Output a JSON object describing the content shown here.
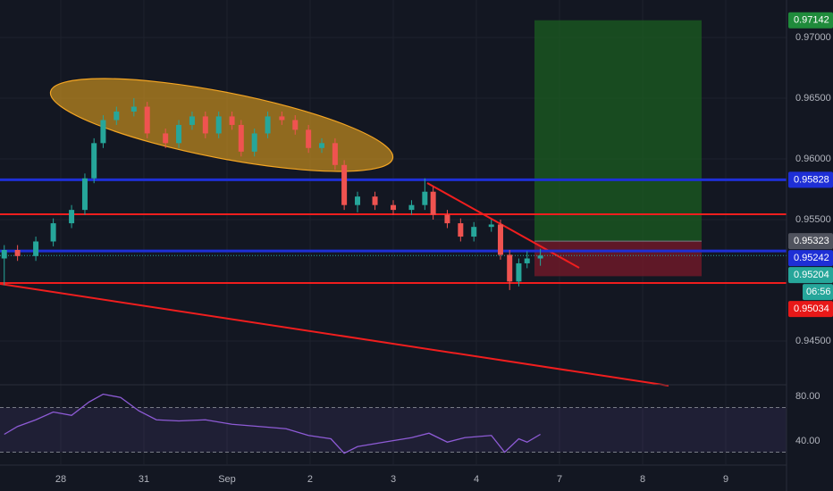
{
  "chart_data": {
    "type": "candlestick",
    "x": [
      -0.68,
      -0.52,
      -0.3,
      -0.09,
      0.13,
      0.29,
      0.4,
      0.51,
      0.67,
      0.88,
      1.04,
      1.26,
      1.42,
      1.58,
      1.74,
      1.9,
      2.06,
      2.17,
      2.33,
      2.49,
      2.66,
      2.82,
      2.98,
      3.14,
      3.3,
      3.41,
      3.57,
      3.78,
      4.0,
      4.22,
      4.38,
      4.48,
      4.65,
      4.81,
      4.97,
      5.18,
      5.29,
      5.4,
      5.51,
      5.61,
      5.77
    ],
    "open": [
      0.9518,
      0.9525,
      0.952,
      0.9532,
      0.9547,
      0.9558,
      0.9584,
      0.9613,
      0.9632,
      0.9639,
      0.9643,
      0.9621,
      0.9613,
      0.9628,
      0.9635,
      0.9621,
      0.9635,
      0.9628,
      0.9606,
      0.9621,
      0.9635,
      0.9632,
      0.9624,
      0.9609,
      0.9613,
      0.9595,
      0.9562,
      0.9569,
      0.9562,
      0.9558,
      0.9562,
      0.9573,
      0.9554,
      0.9547,
      0.9536,
      0.9544,
      0.9546,
      0.9521,
      0.9499,
      0.9514,
      0.9518
    ],
    "high": [
      0.9529,
      0.9529,
      0.9536,
      0.9551,
      0.9562,
      0.9588,
      0.9617,
      0.9636,
      0.9643,
      0.965,
      0.9647,
      0.9625,
      0.9632,
      0.9639,
      0.9639,
      0.9639,
      0.9639,
      0.9632,
      0.9625,
      0.9639,
      0.9639,
      0.9636,
      0.9628,
      0.9617,
      0.9617,
      0.9599,
      0.9573,
      0.9573,
      0.9566,
      0.9566,
      0.9584,
      0.9577,
      0.9558,
      0.9551,
      0.9548,
      0.955,
      0.955,
      0.9525,
      0.9518,
      0.9524,
      0.9526
    ],
    "low": [
      0.9496,
      0.9516,
      0.9516,
      0.9528,
      0.9543,
      0.9554,
      0.958,
      0.9609,
      0.9628,
      0.9635,
      0.9617,
      0.9609,
      0.9609,
      0.9624,
      0.9617,
      0.9617,
      0.9624,
      0.9602,
      0.9602,
      0.9617,
      0.9628,
      0.962,
      0.9605,
      0.9605,
      0.9591,
      0.9558,
      0.9556,
      0.9558,
      0.9554,
      0.9554,
      0.9558,
      0.955,
      0.9543,
      0.9532,
      0.9532,
      0.954,
      0.9517,
      0.9492,
      0.9495,
      0.951,
      0.9512
    ],
    "close": [
      0.9525,
      0.952,
      0.9532,
      0.9547,
      0.9558,
      0.9584,
      0.9613,
      0.9632,
      0.9639,
      0.9643,
      0.9621,
      0.9613,
      0.9628,
      0.9635,
      0.9621,
      0.9635,
      0.9628,
      0.9606,
      0.9621,
      0.9635,
      0.9632,
      0.9624,
      0.9609,
      0.9613,
      0.9595,
      0.9562,
      0.9569,
      0.9562,
      0.9558,
      0.9562,
      0.9573,
      0.9554,
      0.9547,
      0.9536,
      0.9544,
      0.9546,
      0.9521,
      0.9499,
      0.9514,
      0.9518,
      0.95204
    ],
    "up_color": "#26a69a",
    "down_color": "#ef5350",
    "xlim": [
      -0.731,
      8.731
    ],
    "xticks": [
      {
        "value": 0,
        "label": "28"
      },
      {
        "value": 1,
        "label": "31"
      },
      {
        "value": 2,
        "label": "Sep"
      },
      {
        "value": 3,
        "label": "2"
      },
      {
        "value": 4,
        "label": "3"
      },
      {
        "value": 5,
        "label": "4"
      },
      {
        "value": 6,
        "label": "7"
      },
      {
        "value": 7,
        "label": "8"
      },
      {
        "value": 8,
        "label": "9"
      }
    ],
    "ylim": [
      0.94147,
      0.97309
    ],
    "yticks": [
      {
        "value": 0.97,
        "label": "0.97000"
      },
      {
        "value": 0.965,
        "label": "0.96500"
      },
      {
        "value": 0.96,
        "label": "0.96000"
      },
      {
        "value": 0.955,
        "label": "0.95500"
      },
      {
        "value": 0.945,
        "label": "0.94500"
      }
    ],
    "grid": true,
    "levels": [
      0.95828,
      0.95242
    ],
    "level_color": "#1e2fd6",
    "last_price_color": "#26a69a",
    "countdown": "06:56",
    "position": {
      "target": 0.97142,
      "entry": 0.95323,
      "stop": 0.95034,
      "target_color": "#1f8b3b",
      "entry_color": "#50535e",
      "stop_color": "#e81818"
    },
    "rsi": {
      "type": "line",
      "x": [
        -0.68,
        -0.52,
        -0.3,
        -0.09,
        0.13,
        0.34,
        0.51,
        0.72,
        0.94,
        1.15,
        1.42,
        1.74,
        2.06,
        2.39,
        2.71,
        2.98,
        3.25,
        3.41,
        3.57,
        3.89,
        4.22,
        4.43,
        4.65,
        4.86,
        5.18,
        5.34,
        5.51,
        5.61,
        5.77
      ],
      "values": [
        46,
        53,
        59,
        66,
        63,
        75,
        82,
        79,
        67,
        59,
        58,
        59,
        55,
        53,
        51,
        45,
        42,
        29,
        35,
        39,
        43,
        47,
        39,
        43,
        45,
        30,
        42,
        39,
        46
      ],
      "color": "#8e5bd6",
      "ylim": [
        19.2,
        89.6
      ],
      "yticks": [
        {
          "value": 80,
          "label": "80.00"
        },
        {
          "value": 40,
          "label": "40.00"
        }
      ],
      "bands": [
        30,
        70
      ]
    }
  }
}
